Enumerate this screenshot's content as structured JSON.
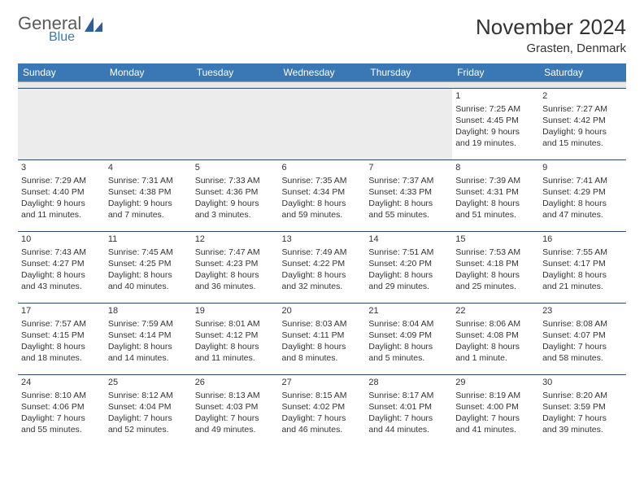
{
  "brand": {
    "line1": "General",
    "line2": "Blue"
  },
  "title": "November 2024",
  "location": "Grasten, Denmark",
  "colors": {
    "header_bg": "#3a78b5",
    "header_text": "#ffffff",
    "text": "#333333",
    "grid_line": "#2c4a6b",
    "spacer_bg": "#e8e8e8"
  },
  "dayNames": [
    "Sunday",
    "Monday",
    "Tuesday",
    "Wednesday",
    "Thursday",
    "Friday",
    "Saturday"
  ],
  "weeks": [
    [
      null,
      null,
      null,
      null,
      null,
      {
        "n": "1",
        "sr": "Sunrise: 7:25 AM",
        "ss": "Sunset: 4:45 PM",
        "dl": "Daylight: 9 hours and 19 minutes."
      },
      {
        "n": "2",
        "sr": "Sunrise: 7:27 AM",
        "ss": "Sunset: 4:42 PM",
        "dl": "Daylight: 9 hours and 15 minutes."
      }
    ],
    [
      {
        "n": "3",
        "sr": "Sunrise: 7:29 AM",
        "ss": "Sunset: 4:40 PM",
        "dl": "Daylight: 9 hours and 11 minutes."
      },
      {
        "n": "4",
        "sr": "Sunrise: 7:31 AM",
        "ss": "Sunset: 4:38 PM",
        "dl": "Daylight: 9 hours and 7 minutes."
      },
      {
        "n": "5",
        "sr": "Sunrise: 7:33 AM",
        "ss": "Sunset: 4:36 PM",
        "dl": "Daylight: 9 hours and 3 minutes."
      },
      {
        "n": "6",
        "sr": "Sunrise: 7:35 AM",
        "ss": "Sunset: 4:34 PM",
        "dl": "Daylight: 8 hours and 59 minutes."
      },
      {
        "n": "7",
        "sr": "Sunrise: 7:37 AM",
        "ss": "Sunset: 4:33 PM",
        "dl": "Daylight: 8 hours and 55 minutes."
      },
      {
        "n": "8",
        "sr": "Sunrise: 7:39 AM",
        "ss": "Sunset: 4:31 PM",
        "dl": "Daylight: 8 hours and 51 minutes."
      },
      {
        "n": "9",
        "sr": "Sunrise: 7:41 AM",
        "ss": "Sunset: 4:29 PM",
        "dl": "Daylight: 8 hours and 47 minutes."
      }
    ],
    [
      {
        "n": "10",
        "sr": "Sunrise: 7:43 AM",
        "ss": "Sunset: 4:27 PM",
        "dl": "Daylight: 8 hours and 43 minutes."
      },
      {
        "n": "11",
        "sr": "Sunrise: 7:45 AM",
        "ss": "Sunset: 4:25 PM",
        "dl": "Daylight: 8 hours and 40 minutes."
      },
      {
        "n": "12",
        "sr": "Sunrise: 7:47 AM",
        "ss": "Sunset: 4:23 PM",
        "dl": "Daylight: 8 hours and 36 minutes."
      },
      {
        "n": "13",
        "sr": "Sunrise: 7:49 AM",
        "ss": "Sunset: 4:22 PM",
        "dl": "Daylight: 8 hours and 32 minutes."
      },
      {
        "n": "14",
        "sr": "Sunrise: 7:51 AM",
        "ss": "Sunset: 4:20 PM",
        "dl": "Daylight: 8 hours and 29 minutes."
      },
      {
        "n": "15",
        "sr": "Sunrise: 7:53 AM",
        "ss": "Sunset: 4:18 PM",
        "dl": "Daylight: 8 hours and 25 minutes."
      },
      {
        "n": "16",
        "sr": "Sunrise: 7:55 AM",
        "ss": "Sunset: 4:17 PM",
        "dl": "Daylight: 8 hours and 21 minutes."
      }
    ],
    [
      {
        "n": "17",
        "sr": "Sunrise: 7:57 AM",
        "ss": "Sunset: 4:15 PM",
        "dl": "Daylight: 8 hours and 18 minutes."
      },
      {
        "n": "18",
        "sr": "Sunrise: 7:59 AM",
        "ss": "Sunset: 4:14 PM",
        "dl": "Daylight: 8 hours and 14 minutes."
      },
      {
        "n": "19",
        "sr": "Sunrise: 8:01 AM",
        "ss": "Sunset: 4:12 PM",
        "dl": "Daylight: 8 hours and 11 minutes."
      },
      {
        "n": "20",
        "sr": "Sunrise: 8:03 AM",
        "ss": "Sunset: 4:11 PM",
        "dl": "Daylight: 8 hours and 8 minutes."
      },
      {
        "n": "21",
        "sr": "Sunrise: 8:04 AM",
        "ss": "Sunset: 4:09 PM",
        "dl": "Daylight: 8 hours and 5 minutes."
      },
      {
        "n": "22",
        "sr": "Sunrise: 8:06 AM",
        "ss": "Sunset: 4:08 PM",
        "dl": "Daylight: 8 hours and 1 minute."
      },
      {
        "n": "23",
        "sr": "Sunrise: 8:08 AM",
        "ss": "Sunset: 4:07 PM",
        "dl": "Daylight: 7 hours and 58 minutes."
      }
    ],
    [
      {
        "n": "24",
        "sr": "Sunrise: 8:10 AM",
        "ss": "Sunset: 4:06 PM",
        "dl": "Daylight: 7 hours and 55 minutes."
      },
      {
        "n": "25",
        "sr": "Sunrise: 8:12 AM",
        "ss": "Sunset: 4:04 PM",
        "dl": "Daylight: 7 hours and 52 minutes."
      },
      {
        "n": "26",
        "sr": "Sunrise: 8:13 AM",
        "ss": "Sunset: 4:03 PM",
        "dl": "Daylight: 7 hours and 49 minutes."
      },
      {
        "n": "27",
        "sr": "Sunrise: 8:15 AM",
        "ss": "Sunset: 4:02 PM",
        "dl": "Daylight: 7 hours and 46 minutes."
      },
      {
        "n": "28",
        "sr": "Sunrise: 8:17 AM",
        "ss": "Sunset: 4:01 PM",
        "dl": "Daylight: 7 hours and 44 minutes."
      },
      {
        "n": "29",
        "sr": "Sunrise: 8:19 AM",
        "ss": "Sunset: 4:00 PM",
        "dl": "Daylight: 7 hours and 41 minutes."
      },
      {
        "n": "30",
        "sr": "Sunrise: 8:20 AM",
        "ss": "Sunset: 3:59 PM",
        "dl": "Daylight: 7 hours and 39 minutes."
      }
    ]
  ]
}
